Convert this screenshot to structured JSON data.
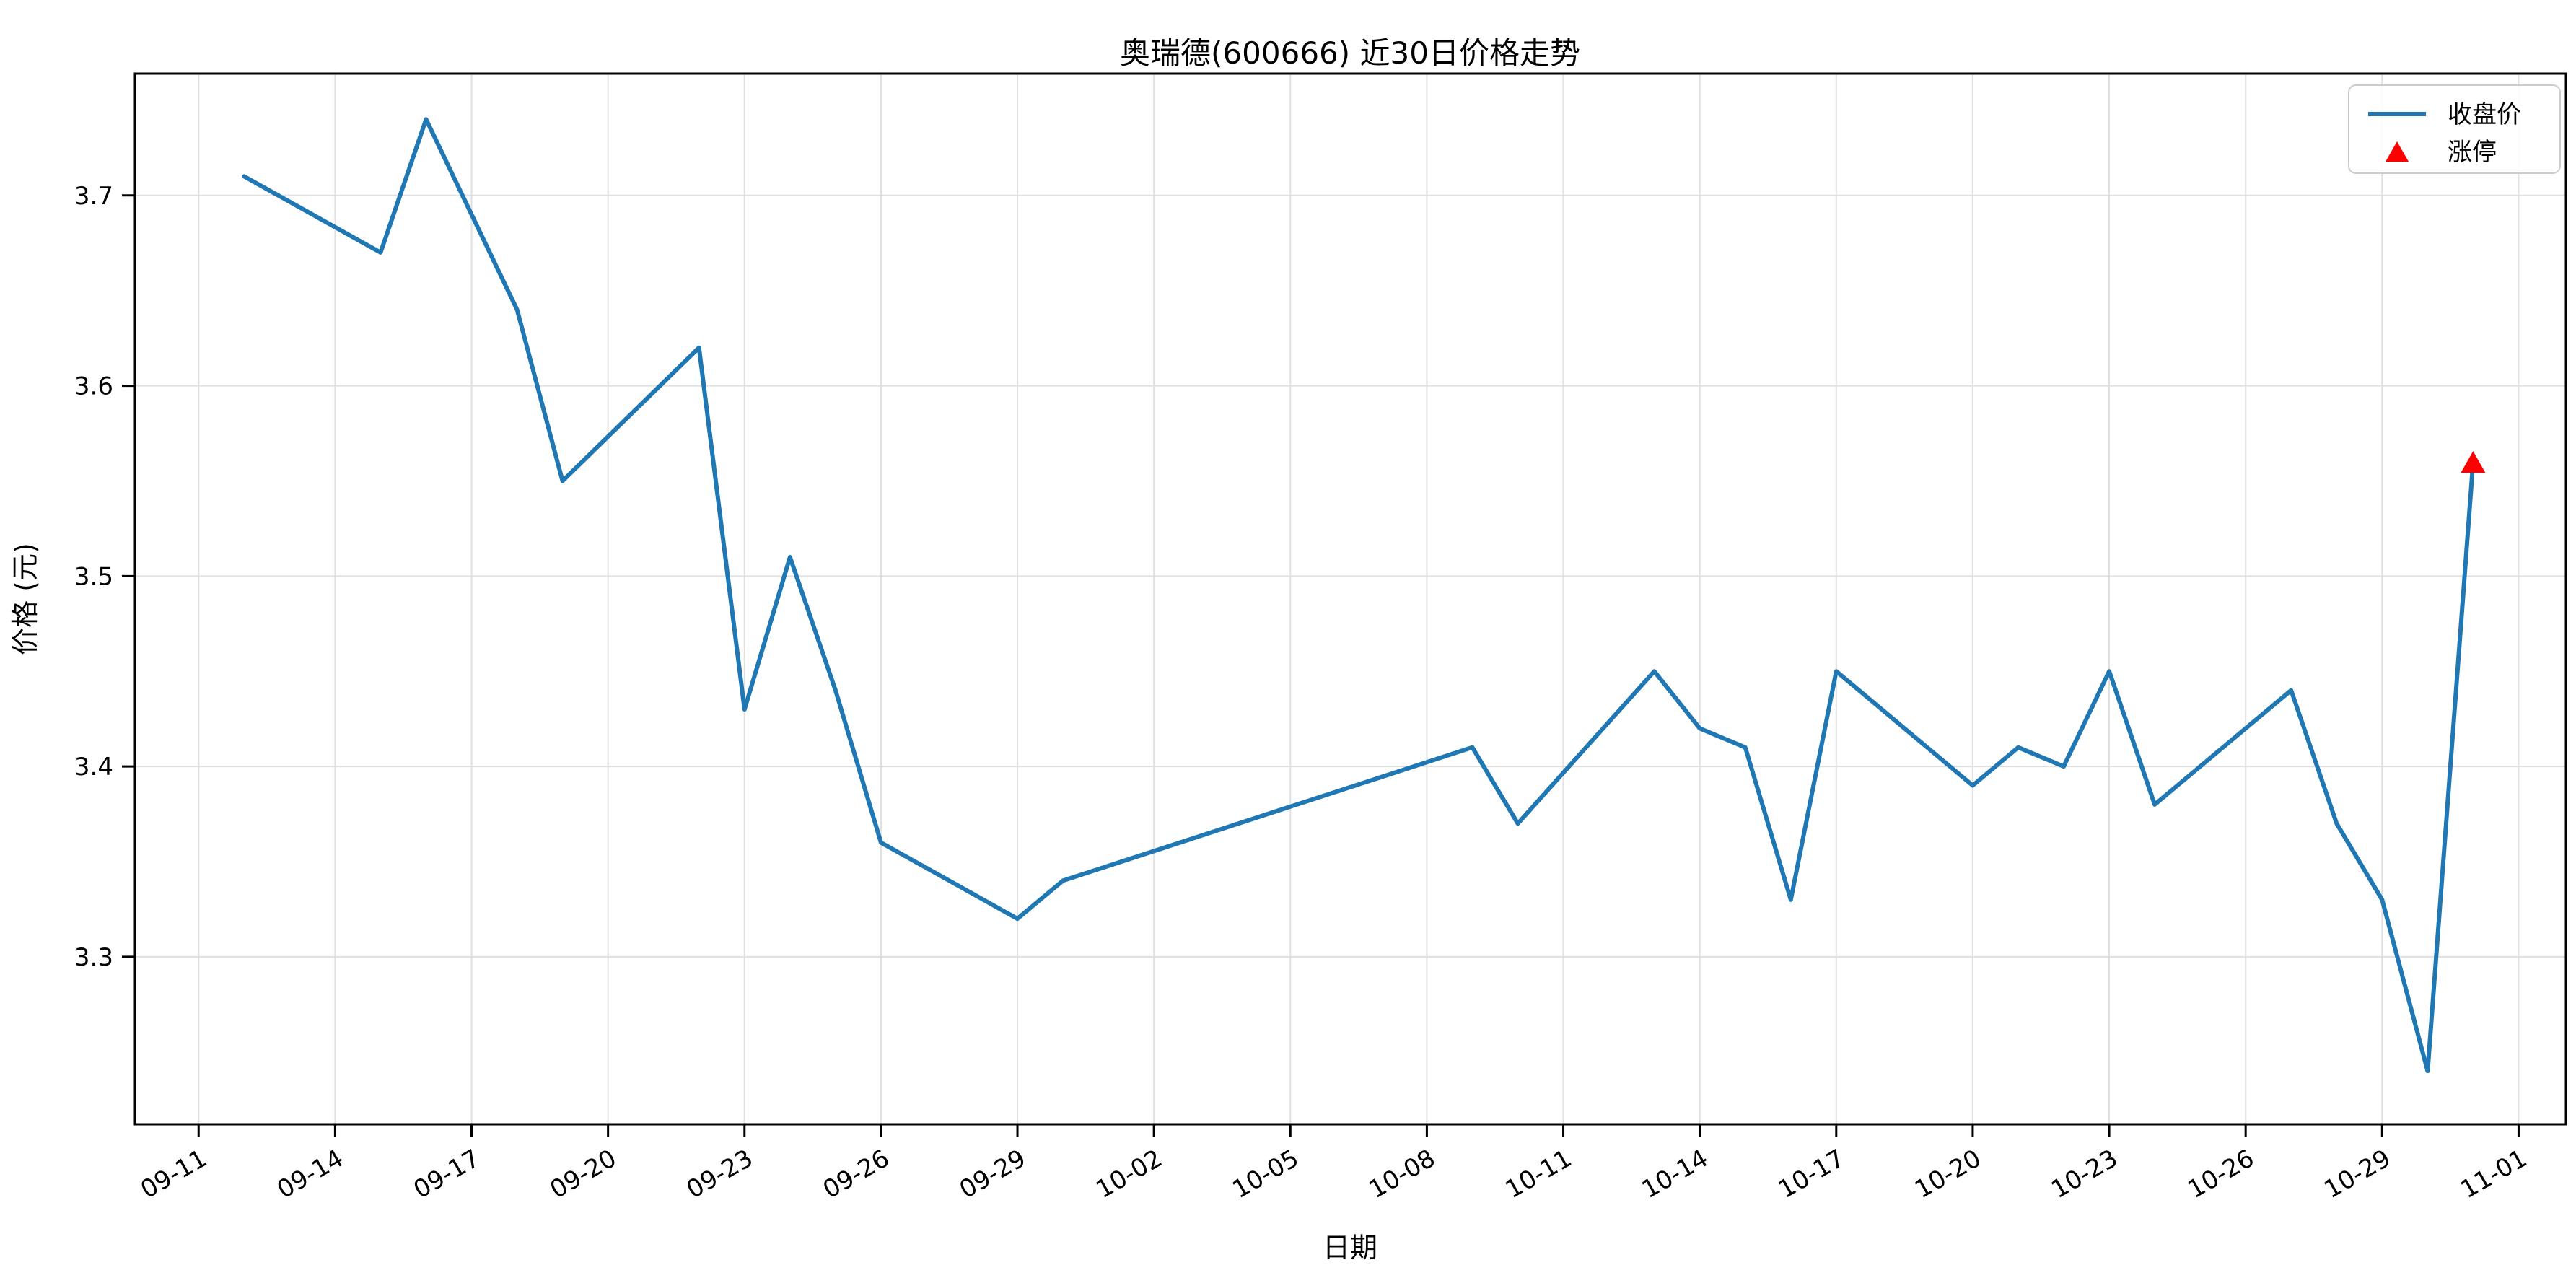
{
  "chart_data": {
    "type": "line",
    "title": "奥瑞德(600666) 近30日价格走势",
    "xlabel": "日期",
    "ylabel": "价格 (元)",
    "grid": true,
    "legend_position": "upper right",
    "line_color": "#1f77b4",
    "marker_color": "#ff0000",
    "grid_color": "#e0e0e0",
    "spine_color": "#000000",
    "points": [
      {
        "date": "09-12",
        "close": 3.71
      },
      {
        "date": "09-15",
        "close": 3.67
      },
      {
        "date": "09-16",
        "close": 3.74
      },
      {
        "date": "09-17",
        "close": 3.69
      },
      {
        "date": "09-18",
        "close": 3.64
      },
      {
        "date": "09-19",
        "close": 3.55
      },
      {
        "date": "09-22",
        "close": 3.62
      },
      {
        "date": "09-23",
        "close": 3.43
      },
      {
        "date": "09-24",
        "close": 3.51
      },
      {
        "date": "09-25",
        "close": 3.44
      },
      {
        "date": "09-26",
        "close": 3.36
      },
      {
        "date": "09-29",
        "close": 3.32
      },
      {
        "date": "09-30",
        "close": 3.34
      },
      {
        "date": "10-09",
        "close": 3.41
      },
      {
        "date": "10-10",
        "close": 3.37
      },
      {
        "date": "10-13",
        "close": 3.45
      },
      {
        "date": "10-14",
        "close": 3.42
      },
      {
        "date": "10-15",
        "close": 3.41
      },
      {
        "date": "10-16",
        "close": 3.33
      },
      {
        "date": "10-17",
        "close": 3.45
      },
      {
        "date": "10-20",
        "close": 3.39
      },
      {
        "date": "10-21",
        "close": 3.41
      },
      {
        "date": "10-22",
        "close": 3.4
      },
      {
        "date": "10-23",
        "close": 3.45
      },
      {
        "date": "10-24",
        "close": 3.38
      },
      {
        "date": "10-27",
        "close": 3.44
      },
      {
        "date": "10-28",
        "close": 3.37
      },
      {
        "date": "10-29",
        "close": 3.33
      },
      {
        "date": "10-30",
        "close": 3.24
      },
      {
        "date": "10-31",
        "close": 3.56
      }
    ],
    "series": [
      {
        "name": "收盘价",
        "values": [
          3.71,
          3.67,
          3.74,
          3.69,
          3.64,
          3.55,
          3.62,
          3.43,
          3.51,
          3.44,
          3.36,
          3.32,
          3.34,
          3.41,
          3.37,
          3.45,
          3.42,
          3.41,
          3.33,
          3.45,
          3.39,
          3.41,
          3.4,
          3.45,
          3.38,
          3.44,
          3.37,
          3.33,
          3.24,
          3.56
        ]
      }
    ],
    "markers": [
      {
        "name": "涨停",
        "date": "10-31",
        "value": 3.56,
        "shape": "triangle-up"
      }
    ],
    "xticks": [
      "09-11",
      "09-14",
      "09-17",
      "09-20",
      "09-23",
      "09-26",
      "09-29",
      "10-02",
      "10-05",
      "10-08",
      "10-11",
      "10-14",
      "10-17",
      "10-20",
      "10-23",
      "10-26",
      "10-29",
      "11-01"
    ],
    "yticks": [
      3.3,
      3.4,
      3.5,
      3.6,
      3.7
    ],
    "ylim": [
      3.212,
      3.764
    ],
    "xlim_days_from_first_tick": [
      -1.4,
      52.04
    ],
    "legend": {
      "items": [
        {
          "label": "收盘价",
          "type": "line"
        },
        {
          "label": "涨停",
          "type": "triangle-up"
        }
      ]
    }
  }
}
